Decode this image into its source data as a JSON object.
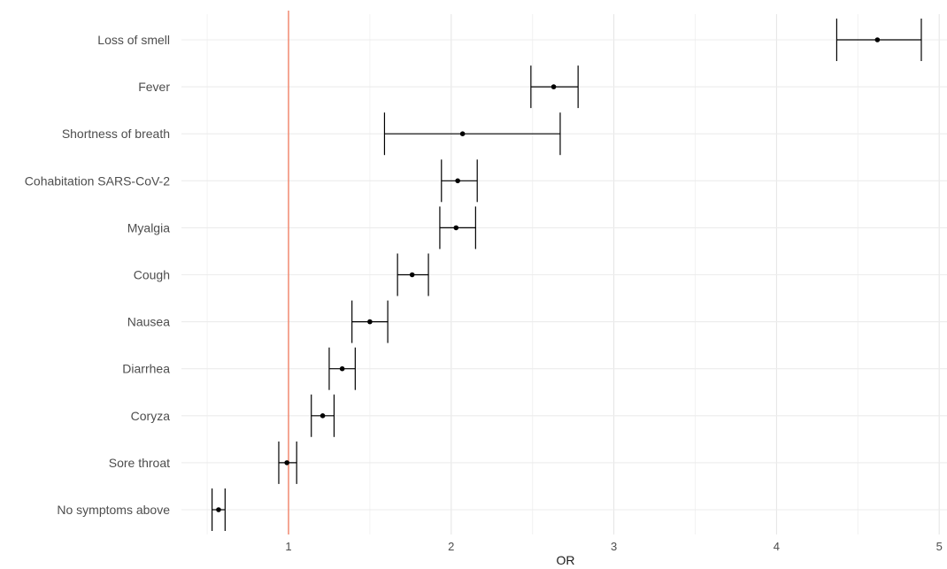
{
  "chart_data": {
    "type": "forest",
    "xlabel": "OR",
    "ylabel": "",
    "xlim": [
      0.52,
      5.05
    ],
    "xticks": [
      "1",
      "2",
      "3",
      "4",
      "5"
    ],
    "reference_line": {
      "x": 1,
      "color": "#f08268"
    },
    "grid": true,
    "categories": [
      "Loss of smell",
      "Fever",
      "Shortness of breath",
      "Cohabitation SARS-CoV-2",
      "Myalgia",
      "Cough",
      "Nausea",
      "Diarrhea",
      "Coryza",
      "Sore throat",
      "No symptoms above"
    ],
    "or": [
      4.62,
      2.63,
      2.07,
      2.04,
      2.03,
      1.76,
      1.5,
      1.33,
      1.21,
      0.99,
      0.57
    ],
    "lower": [
      4.37,
      2.49,
      1.59,
      1.94,
      1.93,
      1.67,
      1.39,
      1.25,
      1.14,
      0.94,
      0.53
    ],
    "upper": [
      4.89,
      2.78,
      2.67,
      2.16,
      2.15,
      1.86,
      1.61,
      1.41,
      1.28,
      1.05,
      0.61
    ]
  }
}
